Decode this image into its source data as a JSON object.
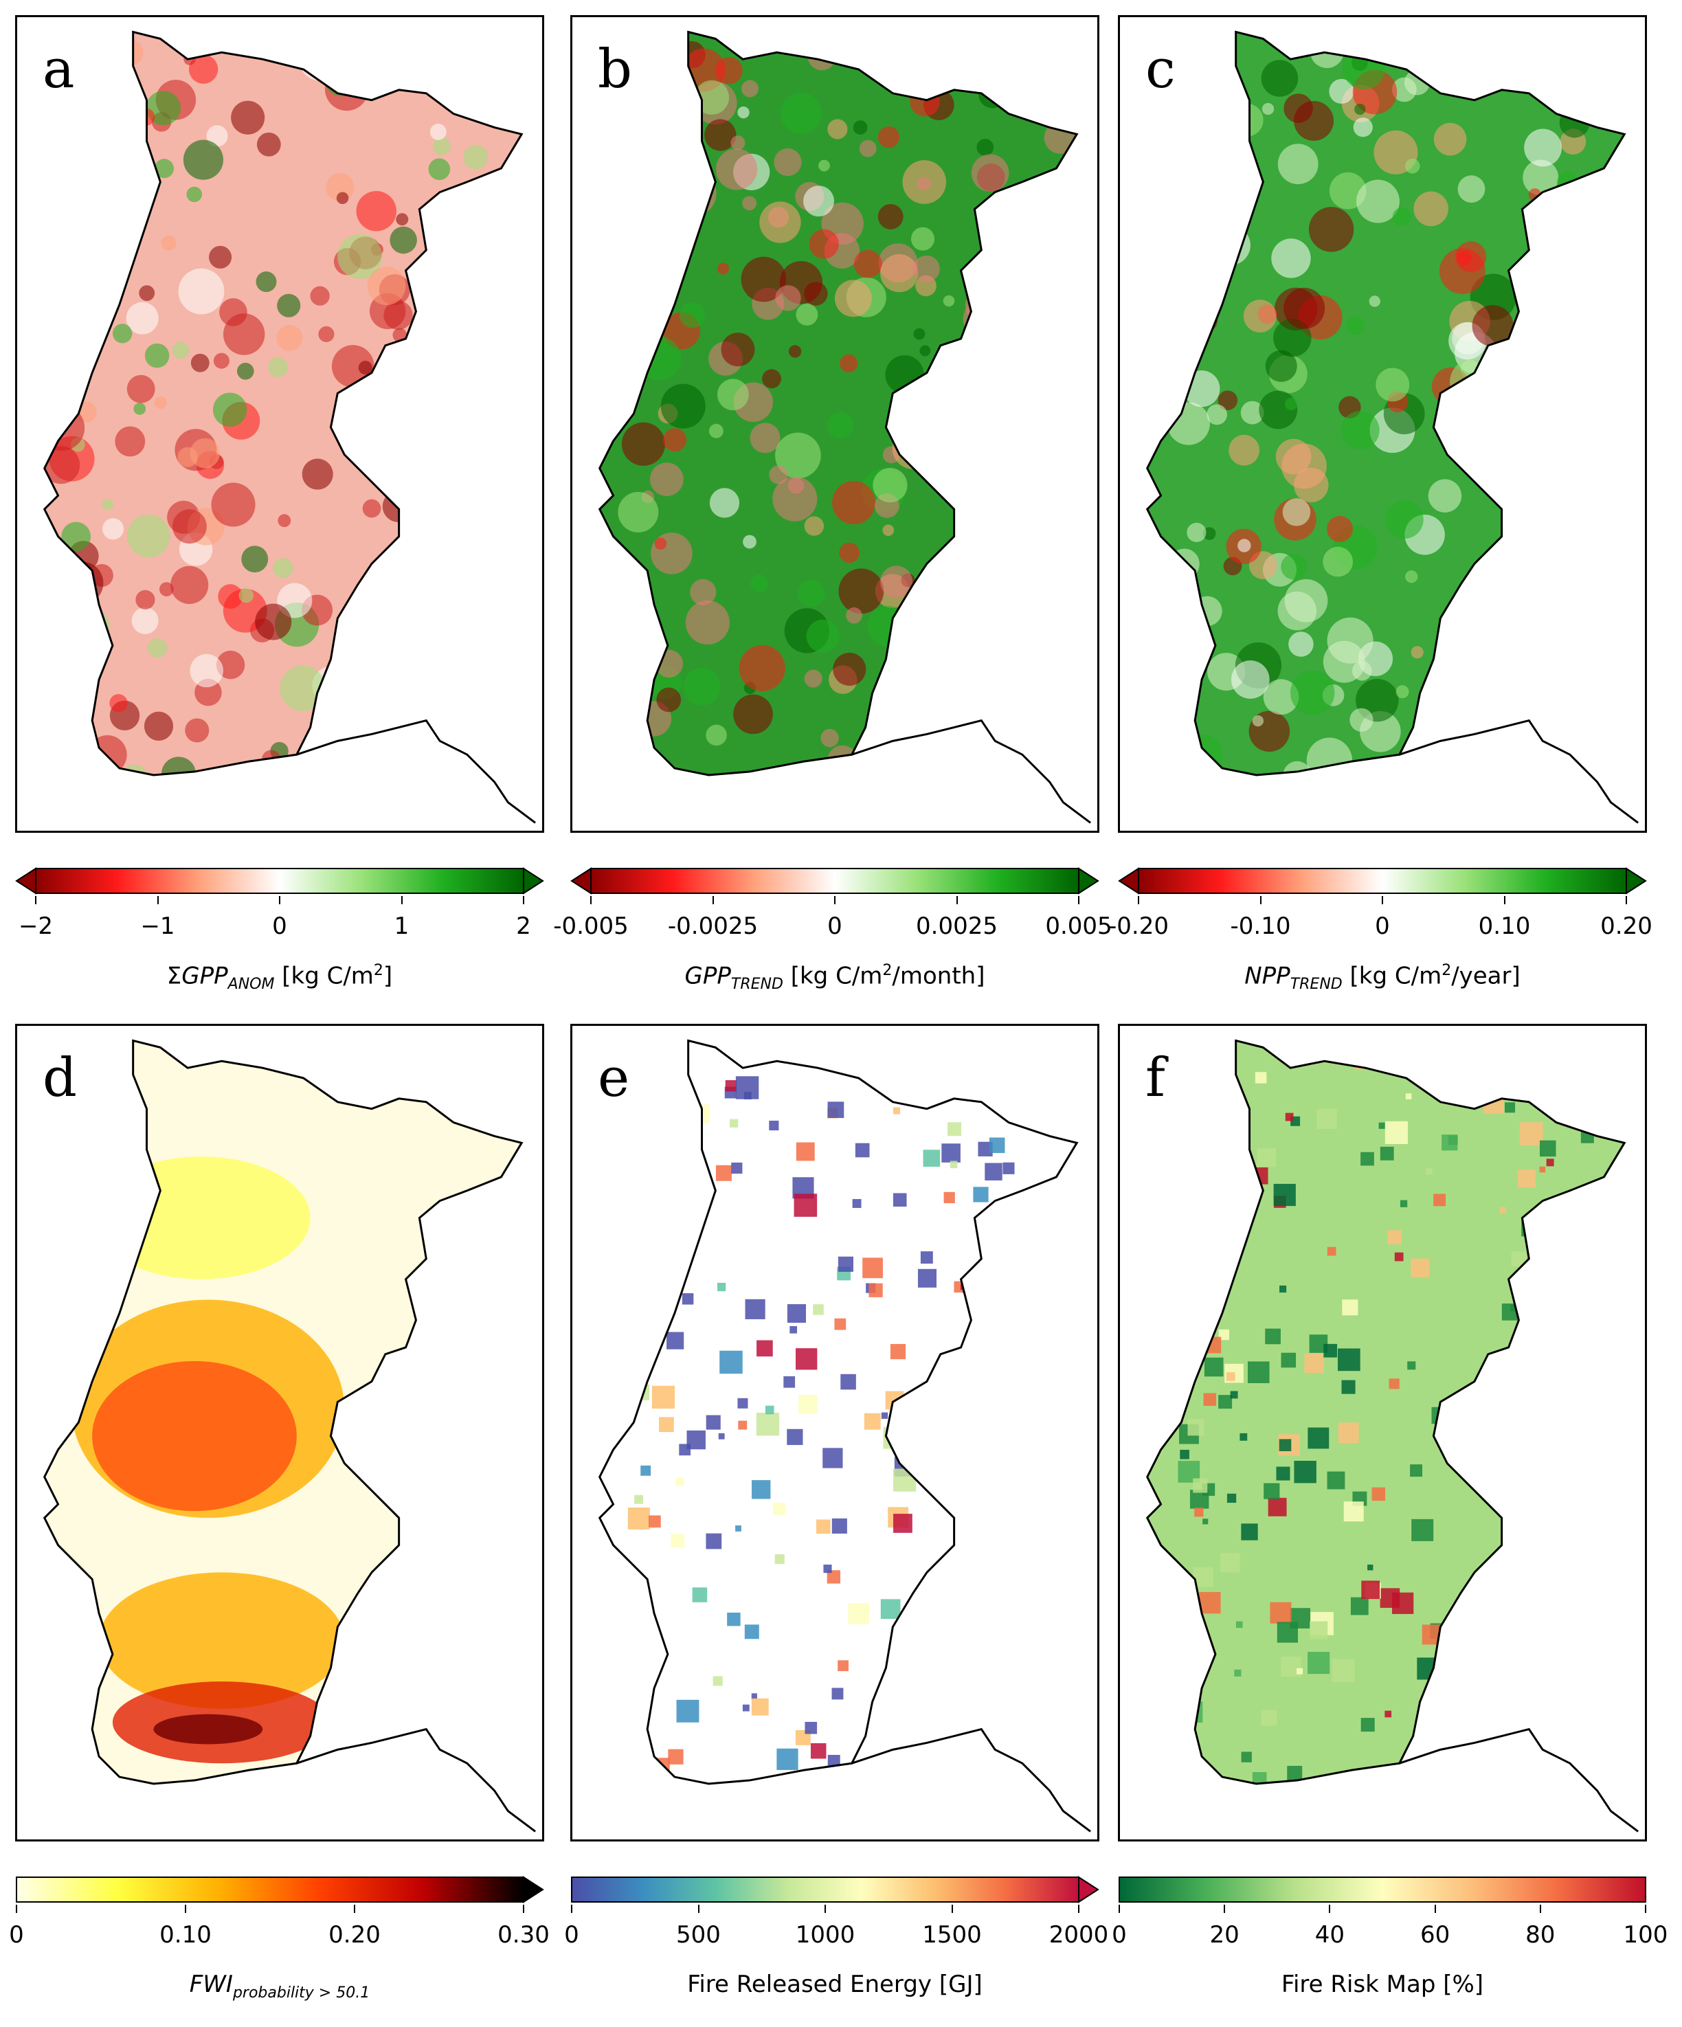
{
  "panels": [
    {
      "letter": "a",
      "ticks": [
        "−2",
        "−1",
        "0",
        "1",
        "2"
      ],
      "label": {
        "prefix": "Σ",
        "var": "GPP",
        "sub": "ANOM",
        "unit_a": " [kg C/m",
        "sup": "2",
        "unit_b": "]"
      },
      "colormap": [
        "#8b0000",
        "#ff1a1a",
        "#ffa07a",
        "#ffffff",
        "#9be27a",
        "#20b020",
        "#006400"
      ],
      "map_fill": "#f4b6a8",
      "hot_fill": "#cc2020",
      "extend": "both"
    },
    {
      "letter": "b",
      "ticks": [
        "-0.005",
        "-0.0025",
        "0",
        "0.0025",
        "0.005"
      ],
      "label": {
        "prefix": "",
        "var": "GPP",
        "sub": "TREND",
        "unit_a": " [kg C/m",
        "sup": "2",
        "unit_b": "/month]"
      },
      "colormap": [
        "#8b0000",
        "#ff1a1a",
        "#ffa07a",
        "#ffffff",
        "#9be27a",
        "#20b020",
        "#006400"
      ],
      "map_fill": "#2e9a2e",
      "hot_fill": "#e87a7a",
      "extend": "both"
    },
    {
      "letter": "c",
      "ticks": [
        "-0.20",
        "-0.10",
        "0",
        "0.10",
        "0.20"
      ],
      "label": {
        "prefix": "",
        "var": "NPP",
        "sub": "TREND",
        "unit_a": " [kg C/m",
        "sup": "2",
        "unit_b": "/year]"
      },
      "colormap": [
        "#8b0000",
        "#ff1a1a",
        "#ffa07a",
        "#ffffff",
        "#9be27a",
        "#20b020",
        "#006400"
      ],
      "map_fill": "#3aa83a",
      "hot_fill": "#d9f2c9",
      "extend": "both"
    },
    {
      "letter": "d",
      "ticks": [
        "0",
        "0.10",
        "0.20",
        "0.30"
      ],
      "label": {
        "prefix": "",
        "var": "FWI",
        "sub": "probability > 50.1",
        "unit_a": "",
        "sup": "",
        "unit_b": ""
      },
      "colormap": [
        "#ffffe8",
        "#ffff40",
        "#ffb000",
        "#ff4000",
        "#c00000",
        "#000000"
      ],
      "map_fill": "#fffbe0",
      "hot_fill": "#ff5a10",
      "extend": "max"
    },
    {
      "letter": "e",
      "ticks": [
        "0",
        "500",
        "1000",
        "1500",
        "2000"
      ],
      "label": {
        "prefix": "",
        "var": "",
        "sub": "",
        "unit_a": "Fire Released Energy [GJ]",
        "sup": "",
        "unit_b": ""
      },
      "colormap": [
        "#4b4fa8",
        "#3b8fc0",
        "#5fc4a4",
        "#c8e89a",
        "#fefebe",
        "#fdc070",
        "#f46d43",
        "#c0103c"
      ],
      "map_fill": "#ffffff",
      "hot_fill": "#4b4fa8",
      "extend": "max"
    },
    {
      "letter": "f",
      "ticks": [
        "0",
        "20",
        "40",
        "60",
        "80",
        "100"
      ],
      "label": {
        "prefix": "",
        "var": "",
        "sub": "",
        "unit_a": "Fire Risk Map [%]",
        "sup": "",
        "unit_b": ""
      },
      "colormap": [
        "#006837",
        "#4ab058",
        "#b8e08a",
        "#fefebe",
        "#fdc07c",
        "#f46d43",
        "#c0102a"
      ],
      "map_fill": "#a8dc84",
      "hot_fill": "#1f8a3e",
      "extend": "none"
    }
  ]
}
